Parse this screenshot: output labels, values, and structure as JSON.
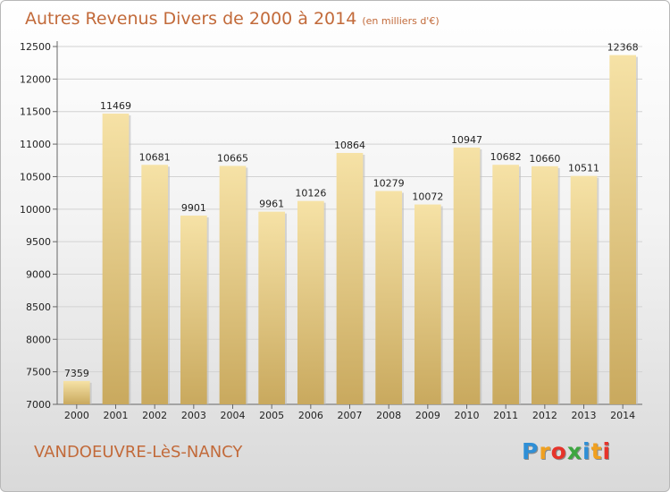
{
  "chart_data": {
    "type": "bar",
    "title": "Autres Revenus Divers de 2000 à 2014",
    "unit": "(en milliers d'€)",
    "categories": [
      "2000",
      "2001",
      "2002",
      "2003",
      "2004",
      "2005",
      "2006",
      "2007",
      "2008",
      "2009",
      "2010",
      "2011",
      "2012",
      "2013",
      "2014"
    ],
    "values": [
      7359,
      11469,
      10681,
      9901,
      10665,
      9961,
      10126,
      10864,
      10279,
      10072,
      10947,
      10682,
      10660,
      10511,
      12368
    ],
    "ylim": [
      7000,
      12500
    ],
    "yticks": [
      7000,
      7500,
      8000,
      8500,
      9000,
      9500,
      10000,
      10500,
      11000,
      11500,
      12000,
      12500
    ],
    "grid": true,
    "bar_color": "#d9bd6e"
  },
  "commune": "VANDOEUVRE-LèS-NANCY",
  "logo": {
    "letters": [
      "P",
      "r",
      "o",
      "x",
      "i",
      "t",
      "i"
    ],
    "colors": [
      "#2f8fd6",
      "#f0a020",
      "#e6332a",
      "#3da640",
      "#2f8fd6",
      "#f0a020",
      "#e6332a"
    ]
  }
}
